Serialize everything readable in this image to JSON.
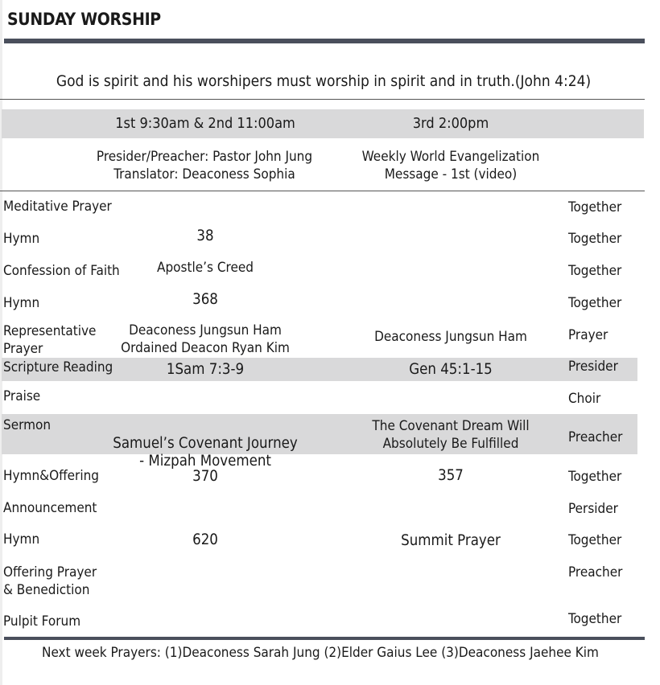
{
  "title": "SUNDAY WORSHIP",
  "verse": "God is spirit and his worshipers must worship in spirit and in truth.(John 4:24)",
  "services": {
    "first": "1st 9:30am & 2nd 11:00am",
    "third": "3rd  2:00pm",
    "first_info": [
      "Presider/Preacher: Pastor John Jung",
      "Translator: Deaconess Sophia"
    ],
    "third_info": [
      "Weekly World Evangelization",
      "Message - 1st  (video)"
    ]
  },
  "rows": [
    {
      "label": "Meditative Prayer",
      "c1": "",
      "c2": "",
      "role": "Together"
    },
    {
      "label": "Hymn",
      "c1": "38",
      "c2": "",
      "role": "Together"
    },
    {
      "label": "Confession of Faith",
      "c1": "Apostle’s Creed",
      "c2": "",
      "role": "Together"
    },
    {
      "label": "Hymn",
      "c1": "368",
      "c2": "",
      "role": "Together"
    },
    {
      "label": [
        "Representative",
        "Prayer"
      ],
      "c1": [
        "Deaconess  Jungsun Ham",
        "Ordained Deacon Ryan Kim"
      ],
      "c2": "Deaconess  Jungsun Ham",
      "role": "Prayer"
    },
    {
      "label": "Scripture Reading",
      "c1": "1Sam 7:3-9",
      "c2": "Gen 45:1-15",
      "role": "Presider"
    },
    {
      "label": "Praise",
      "c1": "",
      "c2": "",
      "role": "Choir"
    },
    {
      "label": "Sermon",
      "c1": [
        "Samuel’s Covenant Journey",
        "- Mizpah Movement"
      ],
      "c2": [
        "The Covenant Dream Will",
        "Absolutely Be Fulfilled"
      ],
      "role": "Preacher"
    },
    {
      "label": "Hymn&Offering",
      "c1": "370",
      "c2": "357",
      "role": "Together"
    },
    {
      "label": "Announcement",
      "c1": "",
      "c2": "",
      "role": "Persider"
    },
    {
      "label": "Hymn",
      "c1": "620",
      "c2": "Summit Prayer",
      "role": "Together"
    },
    {
      "label": [
        "Offering Prayer",
        "& Benediction"
      ],
      "c1": "",
      "c2": "",
      "role": "Preacher"
    },
    {
      "label": "Pulpit Forum",
      "c1": "",
      "c2": "",
      "role": "Together"
    }
  ],
  "footer": "Next week Prayers:  (1)Deaconess Sarah Jung (2)Elder Gaius Lee (3)Deaconess Jaehee Kim",
  "colors": {
    "bar": "#4a4f5c",
    "band": "#d9d9da"
  }
}
